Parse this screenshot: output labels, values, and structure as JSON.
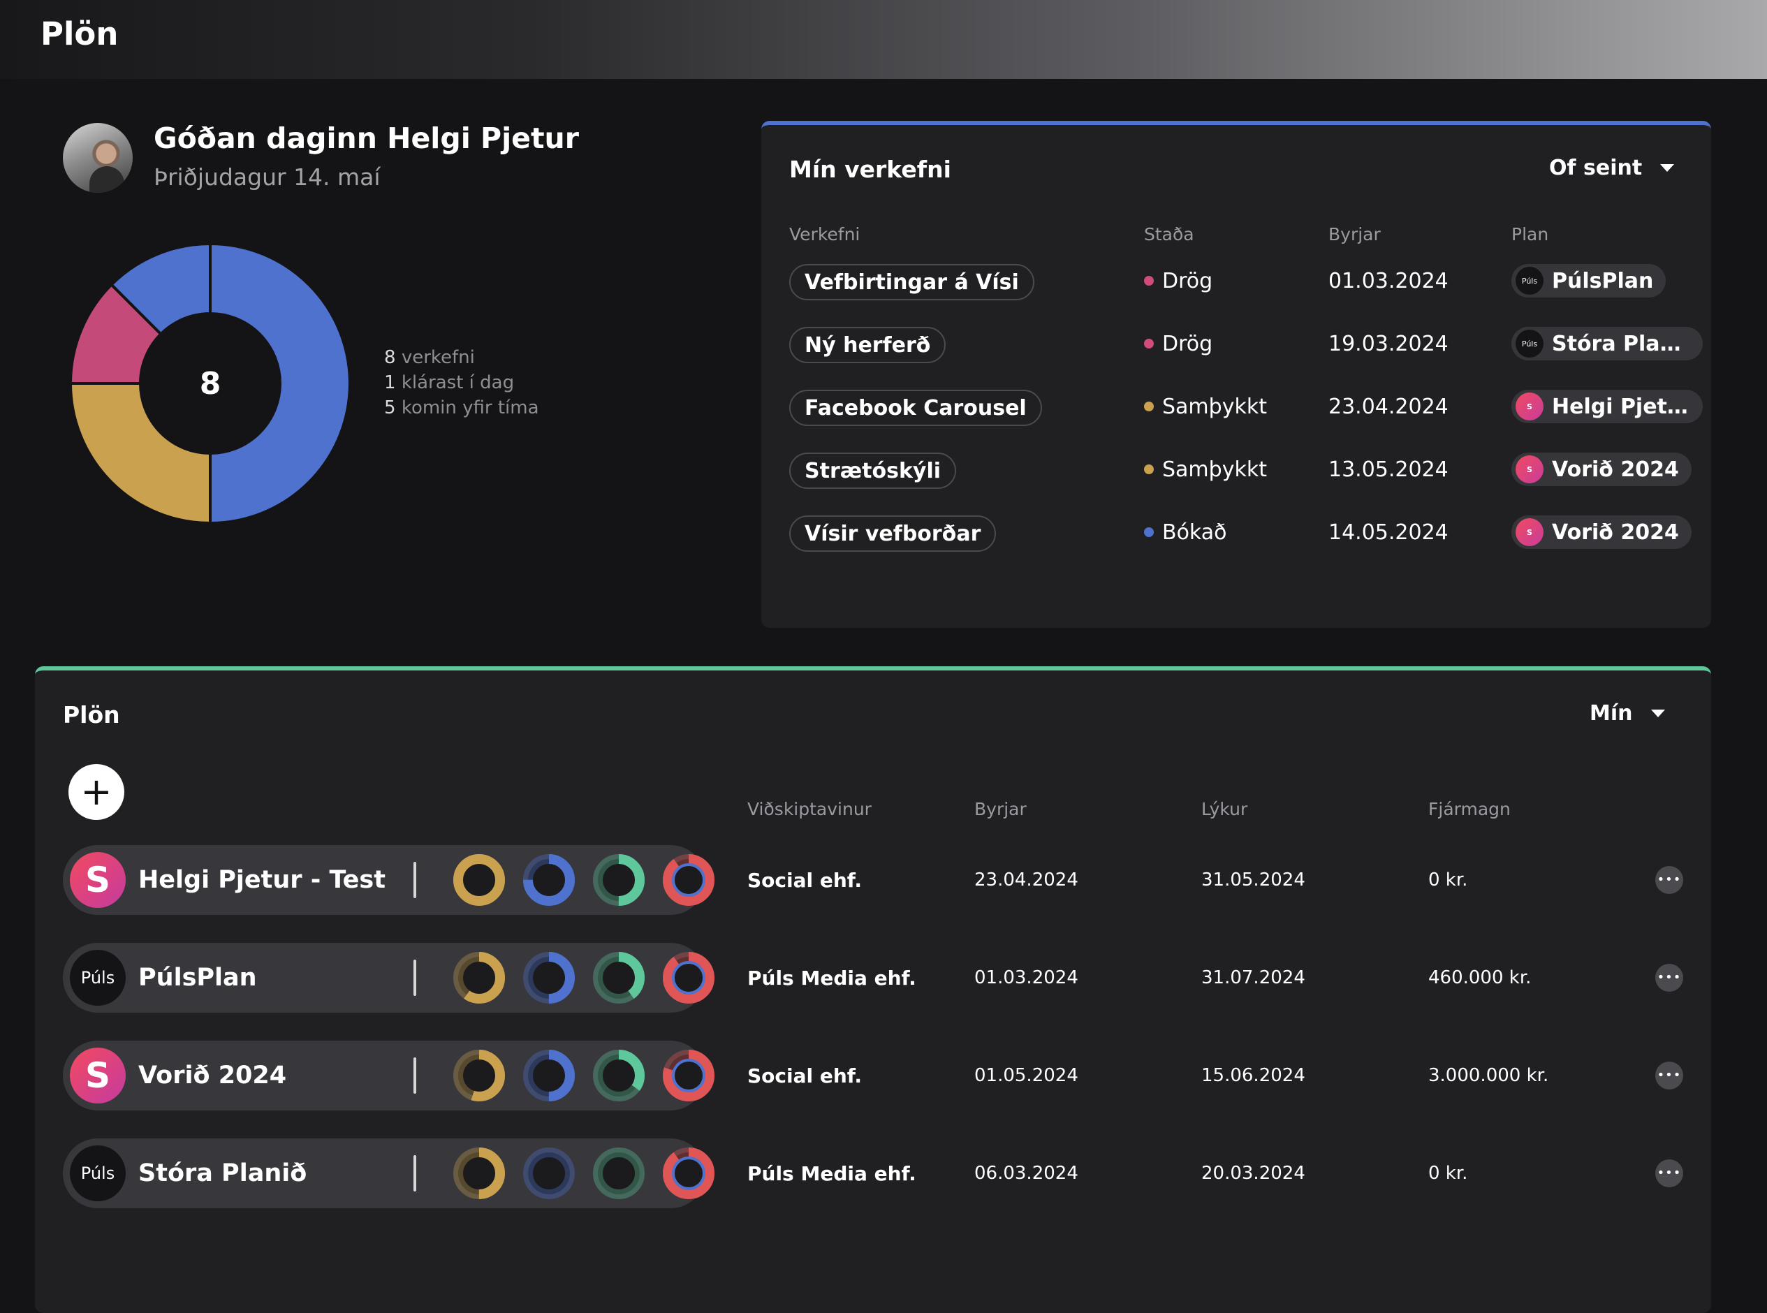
{
  "app": {
    "title": "Plön"
  },
  "greeting": {
    "text": "Góðan daginn Helgi Pjetur",
    "date": "Þriðjudagur 14. maí"
  },
  "summary": {
    "total": "8",
    "stats": [
      {
        "count": "8",
        "label": "verkefni"
      },
      {
        "count": "1",
        "label": "klárast í dag"
      },
      {
        "count": "5",
        "label": "komin yfir tíma"
      }
    ],
    "donut": [
      {
        "fraction": 0.5,
        "color": "#4f72cf"
      },
      {
        "fraction": 0.25,
        "color": "#c9a14f"
      },
      {
        "fraction": 0.125,
        "color": "#c44b79"
      },
      {
        "fraction": 0.125,
        "color": "#4f72cf"
      }
    ]
  },
  "tasks": {
    "title": "Mín verkefni",
    "filter": "Of seint",
    "headers": [
      "Verkefni",
      "Staða",
      "Byrjar",
      "Plan"
    ],
    "rows": [
      {
        "name": "Vefbirtingar á Vísi",
        "status": "Drög",
        "status_color": "#d14b7b",
        "date": "01.03.2024",
        "plan": "PúlsPlan",
        "logo": "puls"
      },
      {
        "name": "Ný herferð",
        "status": "Drög",
        "status_color": "#d14b7b",
        "date": "19.03.2024",
        "plan": "Stóra Planið",
        "logo": "puls"
      },
      {
        "name": "Facebook Carousel",
        "status": "Samþykkt",
        "status_color": "#c9a14f",
        "date": "23.04.2024",
        "plan": "Helgi Pjetur - Test",
        "logo": "s"
      },
      {
        "name": "Strætóskýli",
        "status": "Samþykkt",
        "status_color": "#c9a14f",
        "date": "13.05.2024",
        "plan": "Vorið 2024",
        "logo": "s"
      },
      {
        "name": "Vísir vefborðar",
        "status": "Bókað",
        "status_color": "#4f72cf",
        "date": "14.05.2024",
        "plan": "Vorið 2024",
        "logo": "s"
      }
    ]
  },
  "plans": {
    "title": "Plön",
    "filter": "Mín",
    "add_label": "+",
    "logo_text": {
      "s": "S",
      "puls": "Púls"
    },
    "headers": [
      "Viðskiptavinur",
      "Byrjar",
      "Lýkur",
      "Fjármagn"
    ],
    "ring_colors": [
      "#c9a14f",
      "#4f72cf",
      "#5ec79b",
      "#e05555"
    ],
    "rows": [
      {
        "name": "Helgi Pjetur - Test",
        "logo": "s",
        "client": "Social ehf.",
        "start": "23.04.2024",
        "end": "31.05.2024",
        "budget": "0 kr.",
        "progress": [
          1.0,
          0.75,
          0.5,
          0.9
        ]
      },
      {
        "name": "PúlsPlan",
        "logo": "puls",
        "client": "Púls Media ehf.",
        "start": "01.03.2024",
        "end": "31.07.2024",
        "budget": "460.000 kr.",
        "progress": [
          0.6,
          0.5,
          0.4,
          0.9
        ]
      },
      {
        "name": "Vorið 2024",
        "logo": "s",
        "client": "Social ehf.",
        "start": "01.05.2024",
        "end": "15.06.2024",
        "budget": "3.000.000 kr.",
        "progress": [
          0.55,
          0.5,
          0.35,
          0.8
        ]
      },
      {
        "name": "Stóra Planið",
        "logo": "puls",
        "client": "Púls Media ehf.",
        "start": "06.03.2024",
        "end": "20.03.2024",
        "budget": "0 kr.",
        "progress": [
          0.5,
          0.0,
          0.0,
          0.9
        ]
      }
    ]
  }
}
